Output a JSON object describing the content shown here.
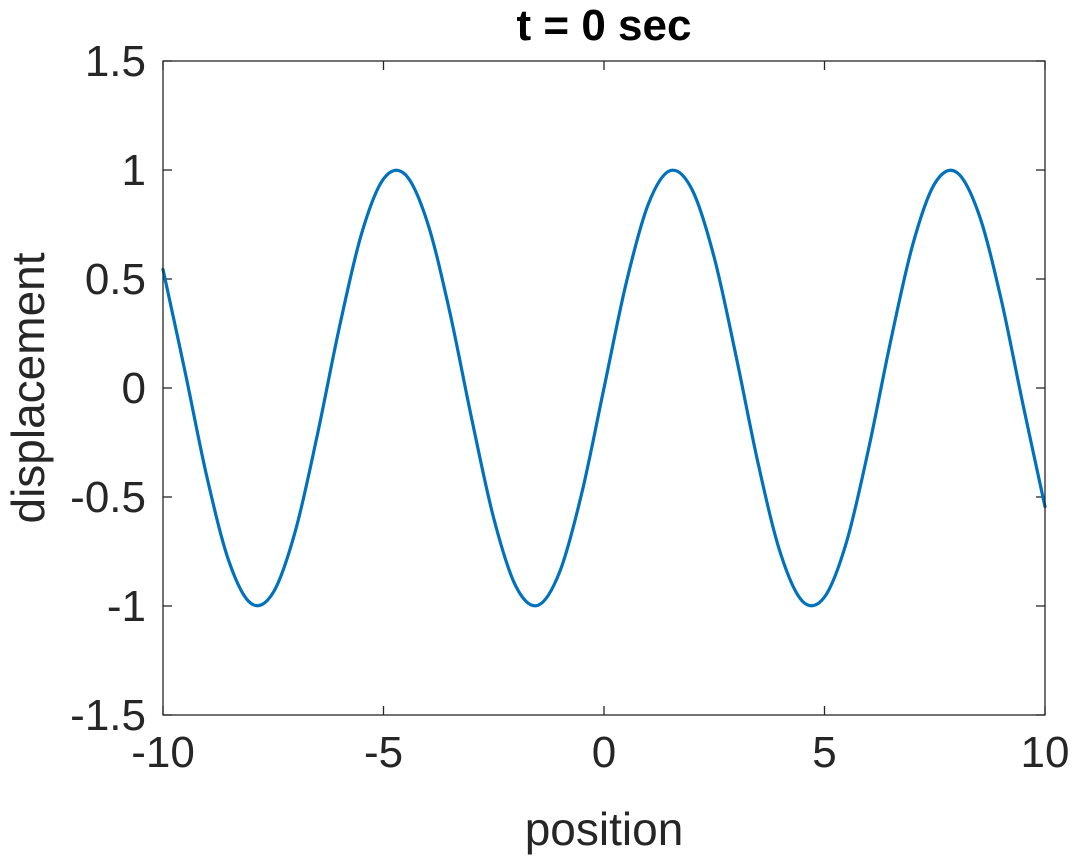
{
  "chart_data": {
    "type": "line",
    "title": "t = 0 sec",
    "xlabel": "position",
    "ylabel": "displacement",
    "xlim": [
      -10,
      10
    ],
    "ylim": [
      -1.5,
      1.5
    ],
    "xticks": [
      -10,
      -5,
      0,
      5,
      10
    ],
    "xtick_labels": [
      "-10",
      "-5",
      "0",
      "5",
      "10"
    ],
    "yticks": [
      -1.5,
      -1,
      -0.5,
      0,
      0.5,
      1,
      1.5
    ],
    "ytick_labels": [
      "-1.5",
      "-1",
      "-0.5",
      "0",
      "0.5",
      "1",
      "1.5"
    ],
    "grid": false,
    "series": [
      {
        "color": "#0072BD",
        "x": [
          -10,
          -9.5,
          -9,
          -8.5,
          -8,
          -7.5,
          -7,
          -6.5,
          -6,
          -5.5,
          -5,
          -4.5,
          -4,
          -3.5,
          -3,
          -2.5,
          -2,
          -1.5,
          -1,
          -0.5,
          0,
          0.5,
          1,
          1.5,
          2,
          2.5,
          3,
          3.5,
          4,
          4.5,
          5,
          5.5,
          6,
          6.5,
          7,
          7.5,
          8,
          8.5,
          9,
          9.5,
          10
        ],
        "y": [
          0.544,
          0.075,
          -0.412,
          -0.798,
          -0.989,
          -0.938,
          -0.657,
          -0.215,
          0.279,
          0.706,
          0.959,
          0.978,
          0.757,
          0.351,
          -0.141,
          -0.598,
          -0.909,
          -0.997,
          -0.841,
          -0.479,
          0,
          0.479,
          0.841,
          0.997,
          0.909,
          0.598,
          0.141,
          -0.351,
          -0.757,
          -0.978,
          -0.959,
          -0.706,
          -0.279,
          0.215,
          0.657,
          0.938,
          0.989,
          0.798,
          0.412,
          -0.075,
          -0.544
        ]
      }
    ]
  }
}
